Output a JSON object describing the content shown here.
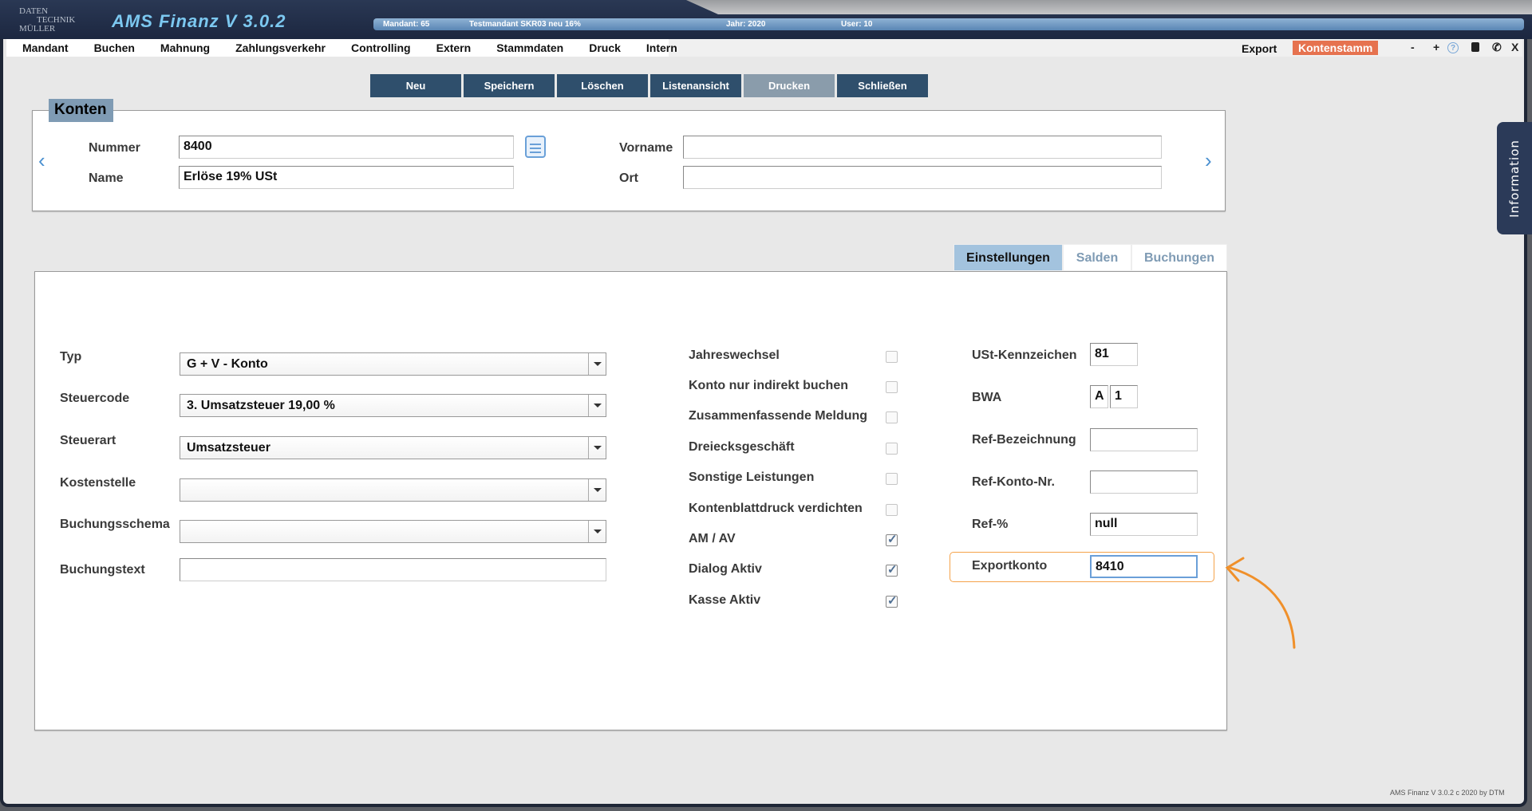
{
  "app": {
    "logo": [
      "DATEN",
      "TECHNIK",
      "MÜLLER"
    ],
    "title": "AMS Finanz V 3.0.2"
  },
  "infobar": {
    "mandant": "Mandant:  65",
    "mandant_name": "Testmandant SKR03 neu 16%",
    "jahr": "Jahr:  2020",
    "user": "User:  10"
  },
  "menu": [
    "Mandant",
    "Buchen",
    "Mahnung",
    "Zahlungsverkehr",
    "Controlling",
    "Extern",
    "Stammdaten",
    "Druck",
    "Intern"
  ],
  "menu_right": {
    "export": "Export",
    "active": "Kontenstamm",
    "active_color": "#e6724f"
  },
  "window_controls": {
    "minimize": "-",
    "maximize": "+",
    "help": "?",
    "close": "X"
  },
  "toolbar": [
    "Neu",
    "Speichern",
    "Löschen",
    "Listenansicht",
    "Drucken",
    "Schließen"
  ],
  "konten": {
    "legend": "Konten",
    "nummer_label": "Nummer",
    "nummer": "8400",
    "name_label": "Name",
    "name": "Erlöse 19% USt",
    "vorname_label": "Vorname",
    "vorname": "",
    "ort_label": "Ort",
    "ort": ""
  },
  "tabs": {
    "items": [
      "Einstellungen",
      "Salden",
      "Buchungen"
    ],
    "active": "Einstellungen"
  },
  "form": {
    "selects": [
      {
        "label": "Typ",
        "value": "G + V - Konto"
      },
      {
        "label": "Steuercode",
        "value": "3. Umsatzsteuer 19,00 %"
      },
      {
        "label": "Steuerart",
        "value": "Umsatzsteuer"
      },
      {
        "label": "Kostenstelle",
        "value": ""
      },
      {
        "label": "Buchungsschema",
        "value": ""
      }
    ],
    "buchungstext_label": "Buchungstext",
    "buchungstext": "",
    "checkboxes": [
      {
        "label": "Jahreswechsel",
        "checked": false
      },
      {
        "label": "Konto nur indirekt buchen",
        "checked": false
      },
      {
        "label": "Zusammenfassende Meldung",
        "checked": false
      },
      {
        "label": "Dreiecksgeschäft",
        "checked": false
      },
      {
        "label": "Sonstige Leistungen",
        "checked": false
      },
      {
        "label": "Kontenblattdruck verdichten",
        "checked": false
      },
      {
        "label": "AM / AV",
        "checked": true
      },
      {
        "label": "Dialog Aktiv",
        "checked": true
      },
      {
        "label": "Kasse Aktiv",
        "checked": true
      }
    ],
    "ust_label": "USt-Kennzeichen",
    "ust": "81",
    "bwa_label": "BWA",
    "bwa_a": "A",
    "bwa_n": "1",
    "refbez_label": "Ref-Bezeichnung",
    "refbez": "",
    "refkonto_label": "Ref-Konto-Nr.",
    "refkonto": "",
    "refproz_label": "Ref-%",
    "refproz": "null",
    "export_label": "Exportkonto",
    "export": "8410"
  },
  "side_tab": "Information",
  "footer": "AMS Finanz V 3.0.2 c  2020 by DTM"
}
